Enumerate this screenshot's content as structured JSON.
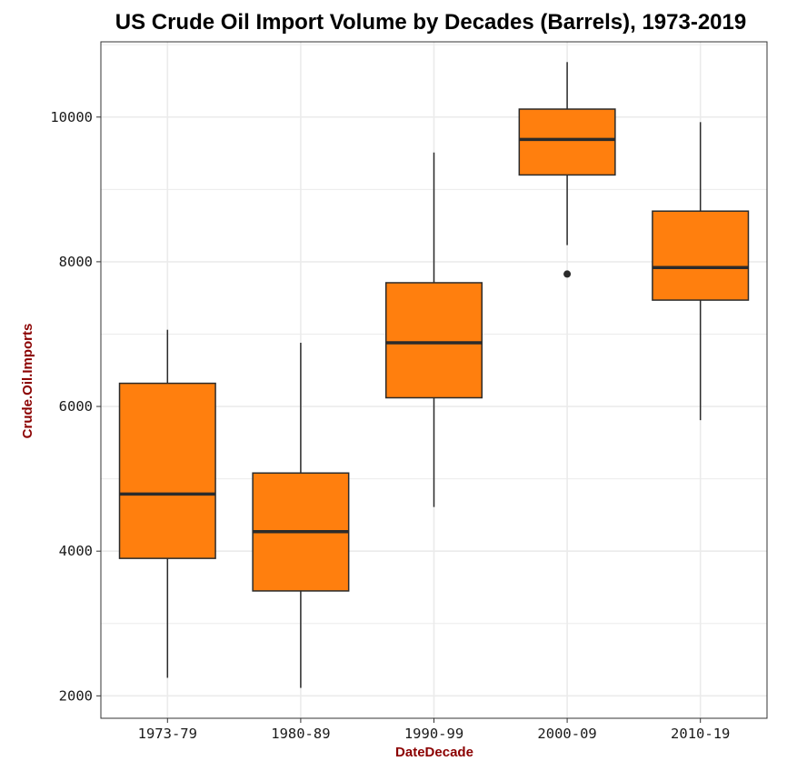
{
  "chart_data": {
    "type": "boxplot",
    "title": "US Crude Oil Import Volume by Decades (Barrels), 1973-2019",
    "xlabel": "DateDecade",
    "ylabel": "Crude.Oil.Imports",
    "categories": [
      "1973-79",
      "1980-89",
      "1990-99",
      "2000-09",
      "2010-19"
    ],
    "boxes": [
      {
        "category": "1973-79",
        "whisker_low": 2250,
        "q1": 3900,
        "median": 4790,
        "q3": 6320,
        "whisker_high": 7060,
        "outliers": []
      },
      {
        "category": "1980-89",
        "whisker_low": 2110,
        "q1": 3450,
        "median": 4270,
        "q3": 5080,
        "whisker_high": 6880,
        "outliers": []
      },
      {
        "category": "1990-99",
        "whisker_low": 4610,
        "q1": 6120,
        "median": 6880,
        "q3": 7710,
        "whisker_high": 9510,
        "outliers": []
      },
      {
        "category": "2000-09",
        "whisker_low": 8230,
        "q1": 9200,
        "median": 9690,
        "q3": 10110,
        "whisker_high": 10760,
        "outliers": [
          7830
        ]
      },
      {
        "category": "2010-19",
        "whisker_low": 5810,
        "q1": 7470,
        "median": 7920,
        "q3": 8700,
        "whisker_high": 9930,
        "outliers": []
      }
    ],
    "yticks": [
      2000,
      4000,
      6000,
      8000,
      10000
    ],
    "ylim": [
      1690,
      11040
    ],
    "grid": true,
    "legend": "none",
    "colors": {
      "box_fill": "#ff7f0e",
      "box_stroke": "#2b2b2b",
      "axis_title": "#8b0000",
      "grid": "#ebebeb",
      "panel_border": "#333333"
    }
  }
}
